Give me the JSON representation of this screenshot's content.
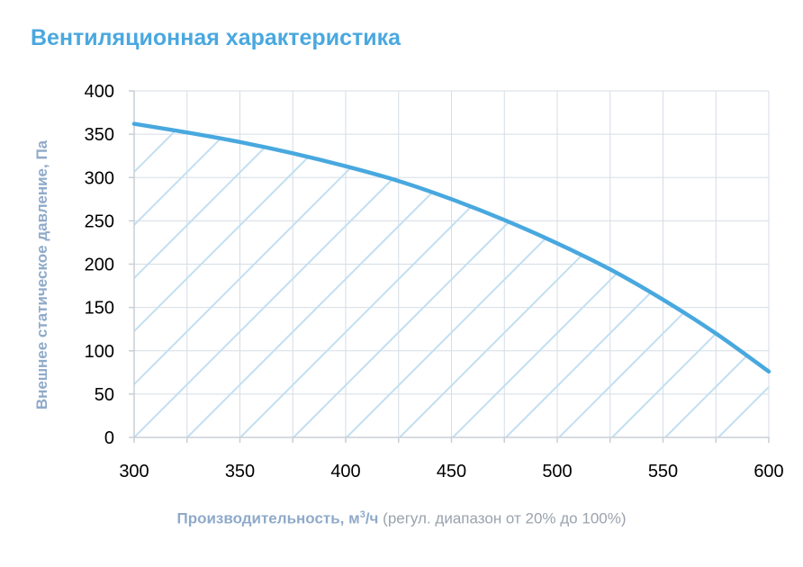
{
  "title": "Вентиляционная характеристика",
  "chart_data": {
    "type": "area",
    "title": "Вентиляционная характеристика",
    "xlabel": "Производительность, м³/ч (регул. диапазон от 20% до 100%)",
    "xlabel_main": "Производительность, м",
    "xlabel_sup": "3",
    "xlabel_unit": "/ч",
    "xlabel_note": "(регул. диапазон от 20% до 100%)",
    "ylabel": "Внешнее статическое давление, Па",
    "xlim": [
      300,
      600
    ],
    "ylim": [
      0,
      400
    ],
    "x_ticks": [
      300,
      350,
      400,
      450,
      500,
      550,
      600
    ],
    "y_ticks": [
      0,
      50,
      100,
      150,
      200,
      250,
      300,
      350,
      400
    ],
    "grid": true,
    "fill": "hatched area under curve",
    "series": [
      {
        "x": [
          300,
          325,
          350,
          375,
          400,
          425,
          450,
          475,
          500,
          525,
          550,
          575,
          600
        ],
        "y": [
          362,
          352,
          341,
          328,
          313,
          296,
          275,
          251,
          224,
          194,
          159,
          120,
          76
        ]
      }
    ],
    "colors": {
      "line": "#48a8df",
      "hatch": "#c2dff2",
      "grid": "#d6dde5",
      "axis": "#c9cfd6"
    }
  }
}
